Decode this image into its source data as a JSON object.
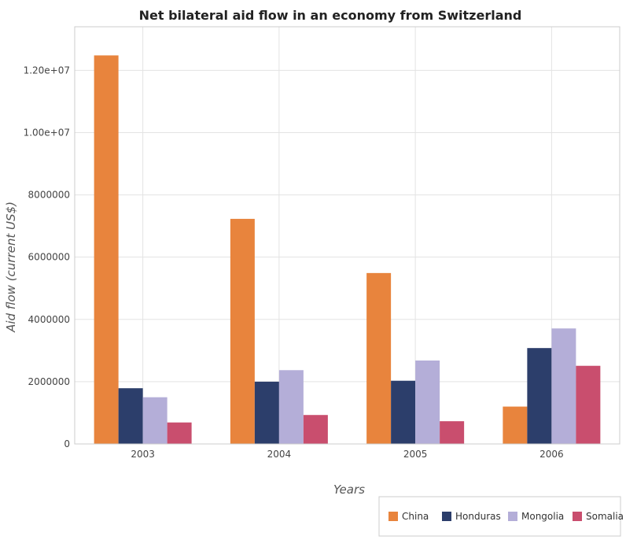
{
  "chart_data": {
    "type": "bar",
    "title": "Net bilateral aid flow in an economy from Switzerland",
    "xlabel": "Years",
    "ylabel": "Aid flow (current US$)",
    "categories": [
      "2003",
      "2004",
      "2005",
      "2006"
    ],
    "ylim": [
      0,
      13400000
    ],
    "yticks": [
      0,
      2000000,
      4000000,
      6000000,
      8000000,
      10000000,
      12000000
    ],
    "ytick_labels": [
      "0",
      "2000000",
      "4000000",
      "6000000",
      "8000000",
      "1.00e+07",
      "1.20e+07"
    ],
    "grid": true,
    "legend_position": "bottom-right",
    "series": [
      {
        "name": "China",
        "color": "#e8843d",
        "values": [
          12480000,
          7230000,
          5490000,
          1200000
        ]
      },
      {
        "name": "Honduras",
        "color": "#2c3e6b",
        "values": [
          1790000,
          2000000,
          2030000,
          3080000
        ]
      },
      {
        "name": "Mongolia",
        "color": "#b4aed8",
        "values": [
          1500000,
          2370000,
          2680000,
          3710000
        ]
      },
      {
        "name": "Somalia",
        "color": "#c94e6e",
        "values": [
          690000,
          930000,
          730000,
          2510000
        ]
      }
    ]
  }
}
